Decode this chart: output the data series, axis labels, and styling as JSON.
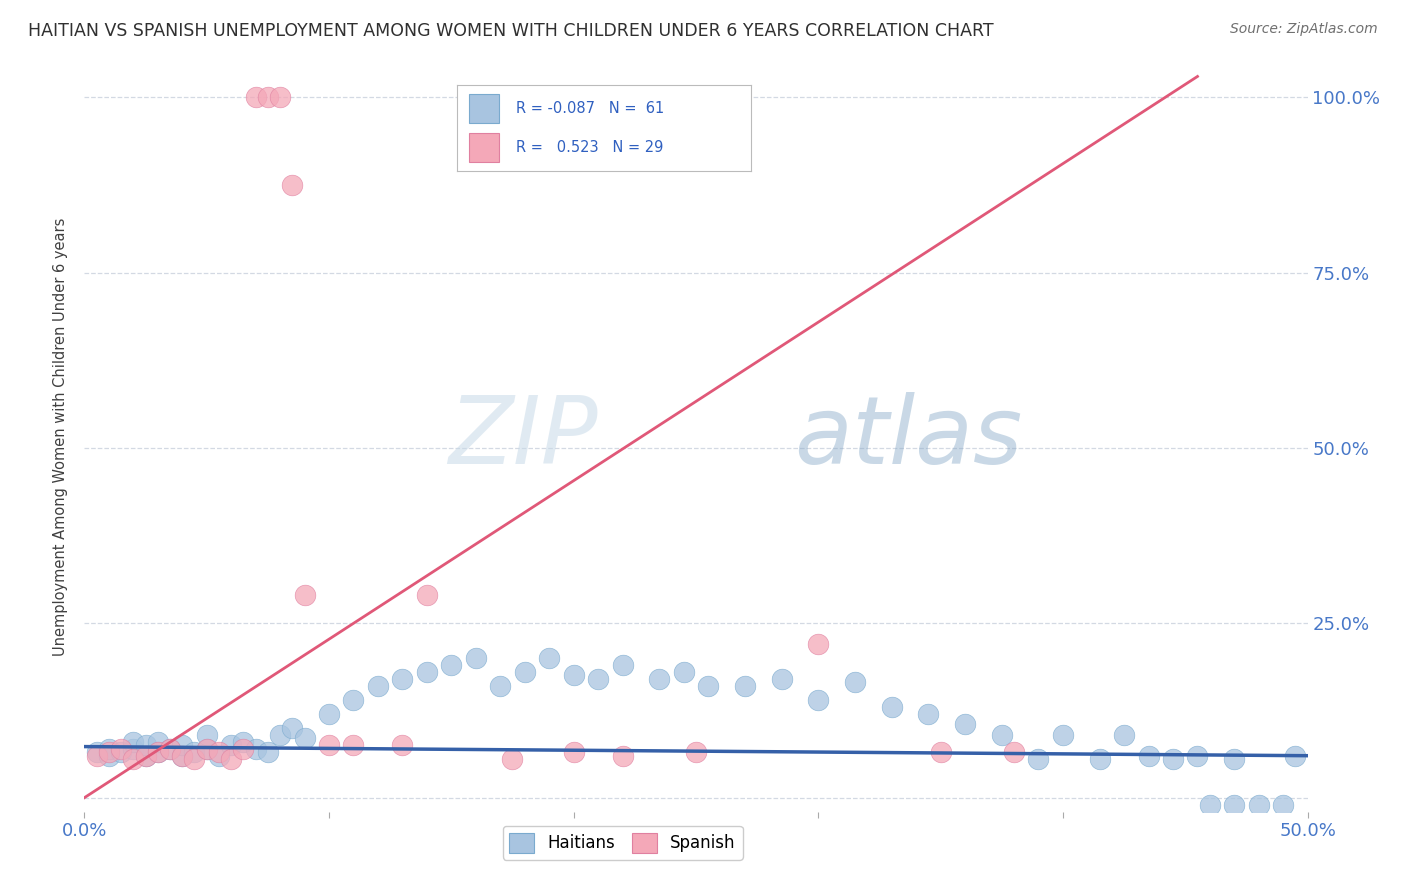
{
  "title": "HAITIAN VS SPANISH UNEMPLOYMENT AMONG WOMEN WITH CHILDREN UNDER 6 YEARS CORRELATION CHART",
  "source": "Source: ZipAtlas.com",
  "ylabel": "Unemployment Among Women with Children Under 6 years",
  "xlim": [
    0.0,
    0.5
  ],
  "ylim": [
    -0.02,
    1.05
  ],
  "xtick_pos": [
    0.0,
    0.1,
    0.2,
    0.3,
    0.4,
    0.5
  ],
  "xtick_labels": [
    "0.0%",
    "",
    "",
    "",
    "",
    "50.0%"
  ],
  "ytick_pos": [
    0.0,
    0.25,
    0.5,
    0.75,
    1.0
  ],
  "ytick_labels": [
    "",
    "25.0%",
    "50.0%",
    "75.0%",
    "100.0%"
  ],
  "haitian_color": "#a8c4e0",
  "haitian_edge": "#7aaace",
  "spanish_color": "#f4a8b8",
  "spanish_edge": "#e080a0",
  "trend_blue_color": "#3560a8",
  "trend_pink_color": "#e05878",
  "watermark_color": "#d0e4f4",
  "grid_color": "#c8d0dc",
  "title_color": "#303030",
  "source_color": "#707070",
  "axis_label_color": "#404040",
  "tick_label_color": "#4878c8",
  "legend_text_color": "#3060c0",
  "blue_x": [
    0.005,
    0.01,
    0.01,
    0.015,
    0.02,
    0.02,
    0.025,
    0.025,
    0.03,
    0.03,
    0.035,
    0.04,
    0.04,
    0.045,
    0.05,
    0.05,
    0.055,
    0.06,
    0.065,
    0.07,
    0.075,
    0.08,
    0.085,
    0.09,
    0.1,
    0.11,
    0.12,
    0.13,
    0.14,
    0.15,
    0.16,
    0.17,
    0.18,
    0.19,
    0.2,
    0.21,
    0.22,
    0.235,
    0.245,
    0.255,
    0.27,
    0.285,
    0.3,
    0.315,
    0.33,
    0.345,
    0.36,
    0.375,
    0.39,
    0.4,
    0.415,
    0.425,
    0.435,
    0.445,
    0.455,
    0.46,
    0.47,
    0.47,
    0.48,
    0.49,
    0.495
  ],
  "blue_y": [
    0.065,
    0.06,
    0.07,
    0.065,
    0.07,
    0.08,
    0.06,
    0.075,
    0.065,
    0.08,
    0.07,
    0.06,
    0.075,
    0.065,
    0.07,
    0.09,
    0.06,
    0.075,
    0.08,
    0.07,
    0.065,
    0.09,
    0.1,
    0.085,
    0.12,
    0.14,
    0.16,
    0.17,
    0.18,
    0.19,
    0.2,
    0.16,
    0.18,
    0.2,
    0.175,
    0.17,
    0.19,
    0.17,
    0.18,
    0.16,
    0.16,
    0.17,
    0.14,
    0.165,
    0.13,
    0.12,
    0.105,
    0.09,
    0.055,
    0.09,
    0.055,
    0.09,
    0.06,
    0.055,
    0.06,
    -0.01,
    -0.01,
    0.055,
    -0.01,
    -0.01,
    0.06
  ],
  "pink_x": [
    0.005,
    0.01,
    0.015,
    0.02,
    0.025,
    0.03,
    0.035,
    0.04,
    0.045,
    0.05,
    0.055,
    0.06,
    0.065,
    0.07,
    0.075,
    0.08,
    0.085,
    0.09,
    0.1,
    0.11,
    0.13,
    0.14,
    0.175,
    0.2,
    0.22,
    0.25,
    0.3,
    0.35,
    0.38
  ],
  "pink_y": [
    0.06,
    0.065,
    0.07,
    0.055,
    0.06,
    0.065,
    0.07,
    0.06,
    0.055,
    0.07,
    0.065,
    0.055,
    0.07,
    1.0,
    1.0,
    1.0,
    0.875,
    0.29,
    0.075,
    0.075,
    0.075,
    0.29,
    0.055,
    0.065,
    0.06,
    0.065,
    0.22,
    0.065,
    0.065
  ],
  "blue_trend_x": [
    0.0,
    0.5
  ],
  "blue_trend_y": [
    0.073,
    0.06
  ],
  "pink_trend_x": [
    0.0,
    0.455
  ],
  "pink_trend_y": [
    0.0,
    1.03
  ]
}
